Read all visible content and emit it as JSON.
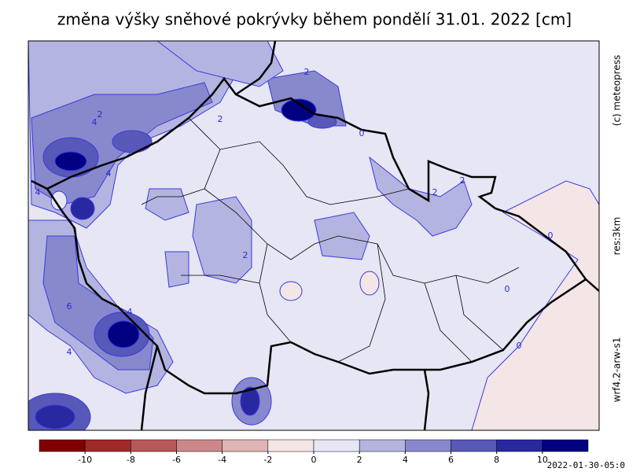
{
  "title": "změna výšky sněhové pokrývky během pondělí 31.01. 2022 [cm]",
  "side_labels": [
    "(c) meteopress",
    "res:3km",
    "wrf4.2-arw-s1"
  ],
  "timestamp": "2022-01-30-05:0",
  "colorbar": {
    "colors": [
      "#800000",
      "#a02828",
      "#b85858",
      "#cc8888",
      "#e0b4b4",
      "#f4e6e6",
      "#e6e6f4",
      "#b4b4e0",
      "#8888cc",
      "#5858b8",
      "#2828a0",
      "#000080"
    ],
    "ticks": [
      -10,
      -8,
      -6,
      -4,
      -2,
      0,
      2,
      4,
      6,
      8,
      10
    ]
  },
  "contour_labels": [
    "2",
    "4",
    "2",
    "4",
    "4",
    "2",
    "2",
    "2",
    "2",
    "6",
    "4",
    "4",
    "0",
    "0",
    "0",
    "0"
  ]
}
